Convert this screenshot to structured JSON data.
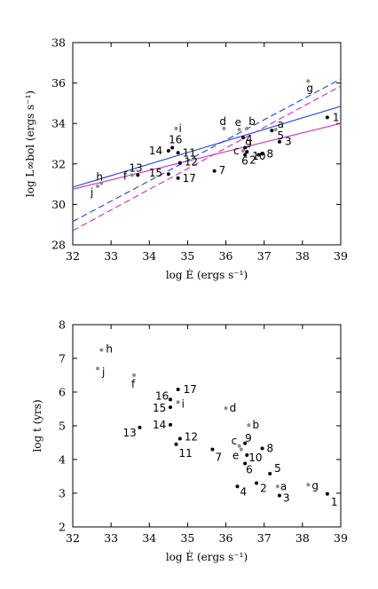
{
  "chart_data": [
    {
      "type": "scatter",
      "xlabel": "log Ė (ergs s⁻¹)",
      "ylabel": "log L∞bol (ergs s⁻¹)",
      "xlim": [
        32,
        39
      ],
      "ylim": [
        28,
        38
      ],
      "xticks": [
        "32",
        "33",
        "34",
        "35",
        "36",
        "37",
        "38",
        "39"
      ],
      "yticks": [
        "28",
        "30",
        "32",
        "34",
        "36",
        "38"
      ],
      "grid": false,
      "colors": {
        "black": "#000000",
        "gray": "#8c8c8c",
        "blue": "#1f3fd6",
        "magenta": "#c42fc4"
      },
      "series": [
        {
          "points": [
            {
              "label": "1",
              "x": 38.65,
              "y": 34.3
            },
            {
              "label": "2",
              "x": 36.85,
              "y": 32.45
            },
            {
              "label": "3",
              "x": 37.4,
              "y": 33.1
            },
            {
              "label": "4",
              "x": 36.45,
              "y": 33.3
            },
            {
              "label": "5",
              "x": 37.2,
              "y": 33.65
            },
            {
              "label": "6",
              "x": 36.5,
              "y": 32.45
            },
            {
              "label": "7",
              "x": 35.7,
              "y": 31.65
            },
            {
              "label": "8",
              "x": 36.95,
              "y": 32.5
            },
            {
              "label": "9",
              "x": 36.5,
              "y": 32.8
            },
            {
              "label": "10",
              "x": 36.55,
              "y": 32.6
            },
            {
              "label": "11",
              "x": 34.75,
              "y": 32.55
            },
            {
              "label": "12",
              "x": 34.8,
              "y": 32.05
            },
            {
              "label": "13",
              "x": 33.7,
              "y": 31.45
            },
            {
              "label": "14",
              "x": 34.5,
              "y": 32.65
            },
            {
              "label": "15",
              "x": 34.5,
              "y": 31.5
            },
            {
              "label": "16",
              "x": 34.6,
              "y": 32.8
            },
            {
              "label": "17",
              "x": 34.75,
              "y": 31.3
            }
          ]
        },
        {
          "points": [
            {
              "label": "a",
              "x": 37.3,
              "y": 33.7
            },
            {
              "label": "b",
              "x": 36.55,
              "y": 33.75
            },
            {
              "label": "c",
              "x": 36.45,
              "y": 32.65
            },
            {
              "label": "d",
              "x": 35.95,
              "y": 33.75
            },
            {
              "label": "e",
              "x": 36.35,
              "y": 33.7
            },
            {
              "label": "f",
              "x": 33.55,
              "y": 31.45
            },
            {
              "label": "g",
              "x": 38.15,
              "y": 36.1
            },
            {
              "label": "h",
              "x": 32.75,
              "y": 31.05
            },
            {
              "label": "i",
              "x": 34.7,
              "y": 33.75
            },
            {
              "label": "j",
              "x": 32.65,
              "y": 30.9
            }
          ]
        }
      ],
      "fit_lines": [
        {
          "x": [
            32,
            39
          ],
          "y": [
            30.85,
            34.85
          ],
          "style": "solid",
          "color": "blue"
        },
        {
          "x": [
            32,
            39
          ],
          "y": [
            30.75,
            34.0
          ],
          "style": "solid",
          "color": "magenta"
        },
        {
          "x": [
            32,
            39
          ],
          "y": [
            29.15,
            36.2
          ],
          "style": "dashed",
          "color": "blue"
        },
        {
          "x": [
            32,
            39
          ],
          "y": [
            28.7,
            35.85
          ],
          "style": "dashed",
          "color": "magenta"
        }
      ]
    },
    {
      "type": "scatter",
      "xlabel": "log Ė (ergs s⁻¹)",
      "ylabel": "log t (yrs)",
      "xlim": [
        32,
        39
      ],
      "ylim": [
        2,
        8
      ],
      "xticks": [
        "32",
        "33",
        "34",
        "35",
        "36",
        "37",
        "38",
        "39"
      ],
      "yticks": [
        "2",
        "3",
        "4",
        "5",
        "6",
        "7",
        "8"
      ],
      "grid": false,
      "colors": {
        "black": "#000000",
        "gray": "#8c8c8c"
      },
      "series": [
        {
          "points": [
            {
              "label": "1",
              "x": 38.65,
              "y": 2.98
            },
            {
              "label": "2",
              "x": 36.8,
              "y": 3.3
            },
            {
              "label": "3",
              "x": 37.4,
              "y": 2.93
            },
            {
              "label": "4",
              "x": 36.3,
              "y": 3.2
            },
            {
              "label": "5",
              "x": 37.15,
              "y": 3.58
            },
            {
              "label": "6",
              "x": 36.5,
              "y": 3.88
            },
            {
              "label": "7",
              "x": 35.65,
              "y": 4.3
            },
            {
              "label": "8",
              "x": 36.95,
              "y": 4.33
            },
            {
              "label": "9",
              "x": 36.5,
              "y": 4.48
            },
            {
              "label": "10",
              "x": 36.55,
              "y": 4.13
            },
            {
              "label": "11",
              "x": 34.7,
              "y": 4.45
            },
            {
              "label": "12",
              "x": 34.8,
              "y": 4.62
            },
            {
              "label": "13",
              "x": 33.75,
              "y": 4.95
            },
            {
              "label": "14",
              "x": 34.55,
              "y": 5.03
            },
            {
              "label": "15",
              "x": 34.55,
              "y": 5.55
            },
            {
              "label": "16",
              "x": 34.55,
              "y": 5.78
            },
            {
              "label": "17",
              "x": 34.75,
              "y": 6.08
            }
          ]
        },
        {
          "points": [
            {
              "label": "a",
              "x": 37.35,
              "y": 3.2
            },
            {
              "label": "b",
              "x": 36.6,
              "y": 5.02
            },
            {
              "label": "c",
              "x": 36.35,
              "y": 4.4
            },
            {
              "label": "d",
              "x": 36.0,
              "y": 5.52
            },
            {
              "label": "e",
              "x": 36.4,
              "y": 4.3
            },
            {
              "label": "f",
              "x": 33.6,
              "y": 6.5
            },
            {
              "label": "g",
              "x": 38.15,
              "y": 3.25
            },
            {
              "label": "h",
              "x": 32.75,
              "y": 7.25
            },
            {
              "label": "i",
              "x": 34.75,
              "y": 5.7
            },
            {
              "label": "j",
              "x": 32.65,
              "y": 6.7
            }
          ]
        }
      ]
    }
  ]
}
